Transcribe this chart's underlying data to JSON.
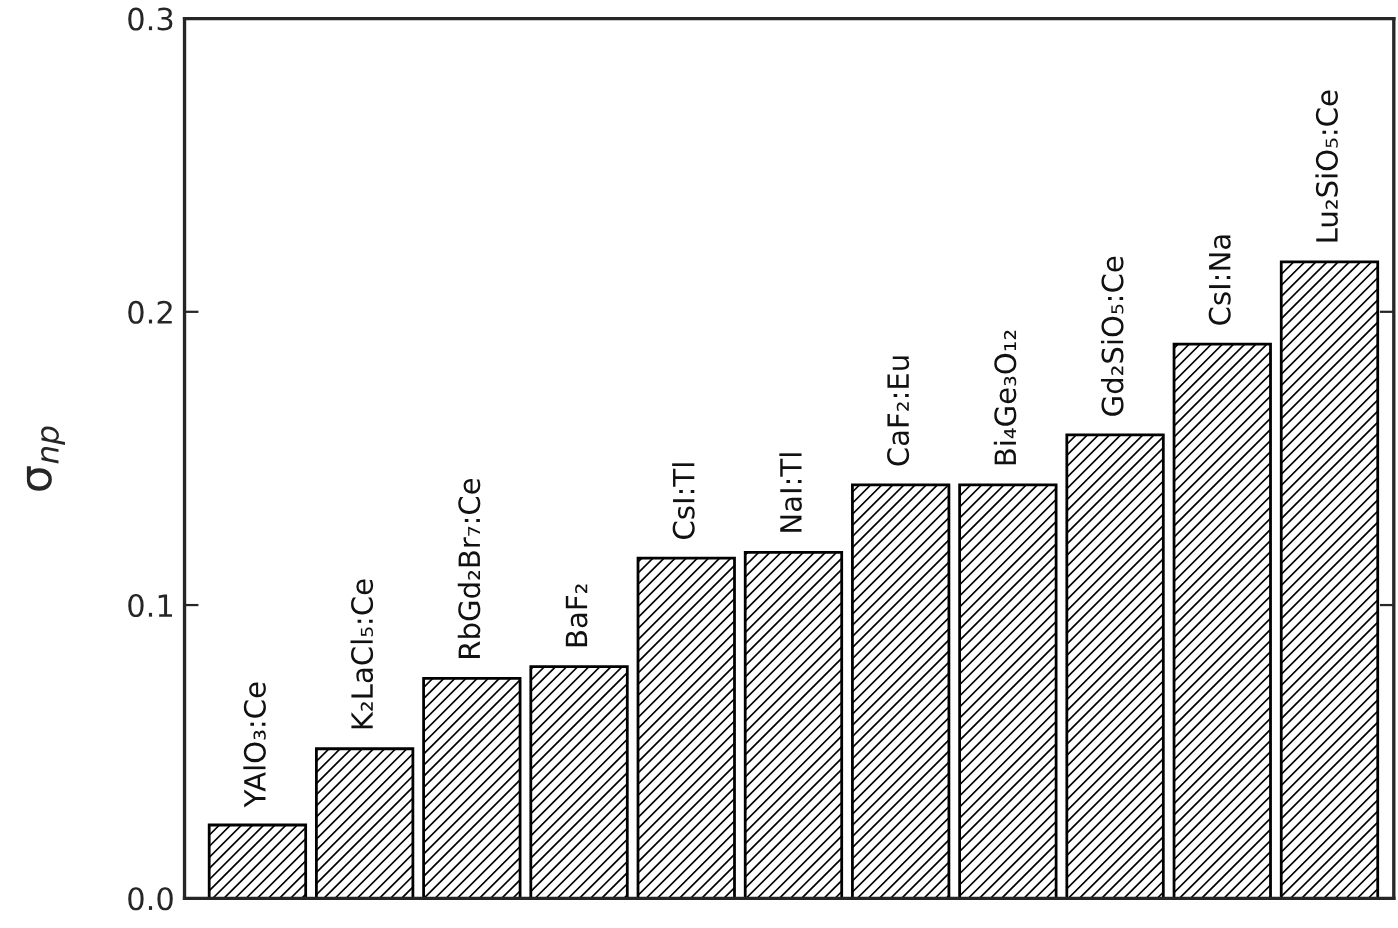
{
  "chart_data": {
    "type": "bar",
    "ylabel": "σ$_{np}$",
    "categories": [
      "YAlO₃:Ce",
      "K₂LaCl₅:Ce",
      "RbGd₂Br₇:Ce",
      "BaF₂",
      "CsI:Tl",
      "NaI:Tl",
      "CaF₂:Eu",
      "Bi₄Ge₃O₁₂",
      "Gd₂SiO₅:Ce",
      "CsI:Na",
      "Lu₂SiO₅:Ce"
    ],
    "values": [
      0.025,
      0.051,
      0.075,
      0.079,
      0.116,
      0.118,
      0.141,
      0.141,
      0.158,
      0.189,
      0.217
    ],
    "color": "#000000",
    "ylim": [
      0.0,
      0.3
    ],
    "yticks": [
      {
        "value": 0.0,
        "label": "0.0"
      },
      {
        "value": 0.1,
        "label": "0.1"
      },
      {
        "value": 0.2,
        "label": "0.2"
      },
      {
        "value": 0.3,
        "label": "0.3"
      }
    ],
    "grid": false,
    "legend": false
  }
}
